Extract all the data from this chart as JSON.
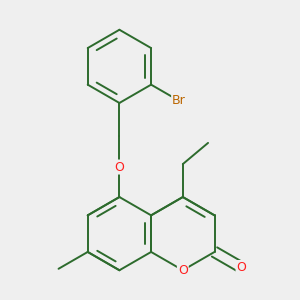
{
  "background_color": "#efefef",
  "bond_color": "#2d6b2d",
  "bond_width": 1.4,
  "atom_colors": {
    "O": "#ff2020",
    "Br": "#bb6600",
    "C": "#2d6b2d"
  },
  "fig_size": [
    3.0,
    3.0
  ],
  "dpi": 100,
  "bl": 0.44
}
